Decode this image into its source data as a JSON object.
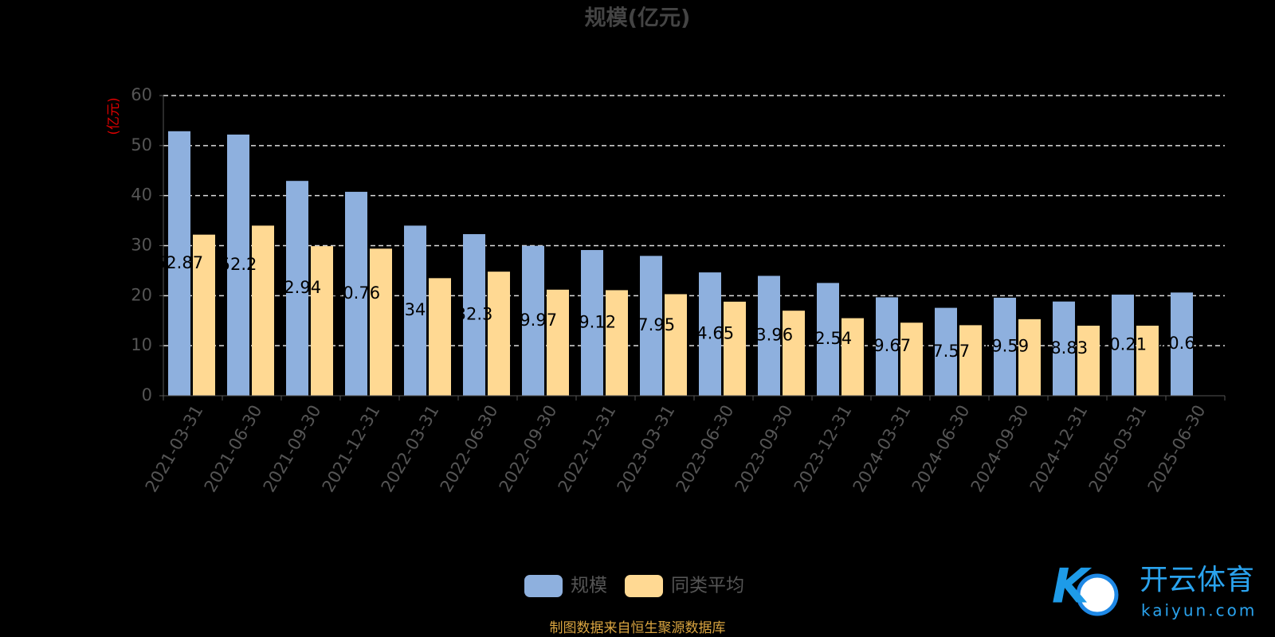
{
  "chart_data": {
    "type": "bar",
    "title": "规模(亿元)",
    "y_label": "(亿元)",
    "categories": [
      "2021-03-31",
      "2021-06-30",
      "2021-09-30",
      "2021-12-31",
      "2022-03-31",
      "2022-06-30",
      "2022-09-30",
      "2022-12-31",
      "2023-03-31",
      "2023-06-30",
      "2023-09-30",
      "2023-12-31",
      "2024-03-31",
      "2024-06-30",
      "2024-09-30",
      "2024-12-31",
      "2025-03-31",
      "2025-06-30"
    ],
    "series": [
      {
        "name": "规模",
        "color": "#8eb0de",
        "values": [
          52.87,
          52.2,
          42.94,
          40.76,
          34.0,
          32.3,
          29.97,
          29.12,
          27.95,
          24.65,
          23.96,
          22.54,
          19.67,
          17.57,
          19.59,
          18.83,
          20.21,
          20.63
        ]
      },
      {
        "name": "同类平均",
        "color": "#ffd993",
        "values": [
          32.2,
          34.0,
          29.9,
          29.4,
          23.5,
          24.8,
          21.2,
          21.1,
          20.3,
          18.8,
          17.0,
          15.5,
          14.6,
          14.1,
          15.3,
          14.0,
          14.0,
          null
        ]
      }
    ],
    "ylim": [
      0,
      60
    ],
    "yticks": [
      0,
      10,
      20,
      30,
      40,
      50,
      60
    ],
    "grid": true,
    "source": "制图数据来自恒生聚源数据库",
    "watermark": {
      "brand": "开云体育",
      "site": "kaiyun.com"
    }
  }
}
